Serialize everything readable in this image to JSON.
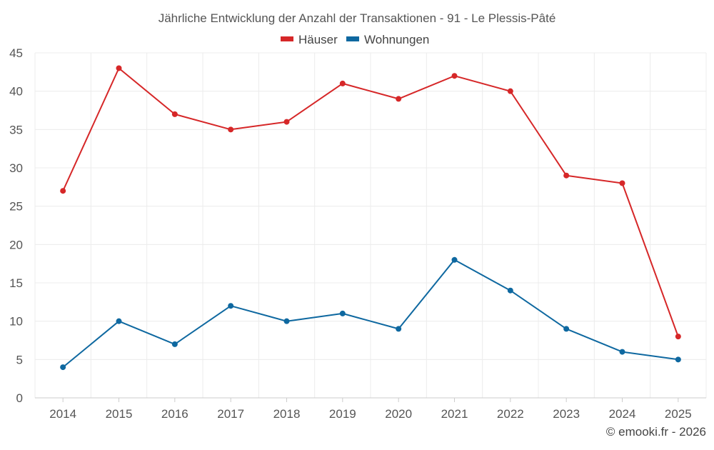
{
  "chart_data": {
    "type": "line",
    "title": "Jährliche Entwicklung der Anzahl der Transaktionen - 91 - Le Plessis-Pâté",
    "categories": [
      "2014",
      "2015",
      "2016",
      "2017",
      "2018",
      "2019",
      "2020",
      "2021",
      "2022",
      "2023",
      "2024",
      "2025"
    ],
    "series": [
      {
        "name": "Häuser",
        "color": "#d62728",
        "values": [
          27,
          43,
          37,
          35,
          36,
          41,
          39,
          42,
          40,
          29,
          28,
          8
        ]
      },
      {
        "name": "Wohnungen",
        "color": "#0e68a0",
        "values": [
          4,
          10,
          7,
          12,
          10,
          11,
          9,
          18,
          14,
          9,
          6,
          5
        ]
      }
    ],
    "ylim": [
      0,
      45
    ],
    "yticks": [
      0,
      5,
      10,
      15,
      20,
      25,
      30,
      35,
      40,
      45
    ],
    "xlabel": "",
    "ylabel": "",
    "grid": true,
    "legend_position": "top-center"
  },
  "footer": {
    "credit": "© emooki.fr - 2026"
  }
}
